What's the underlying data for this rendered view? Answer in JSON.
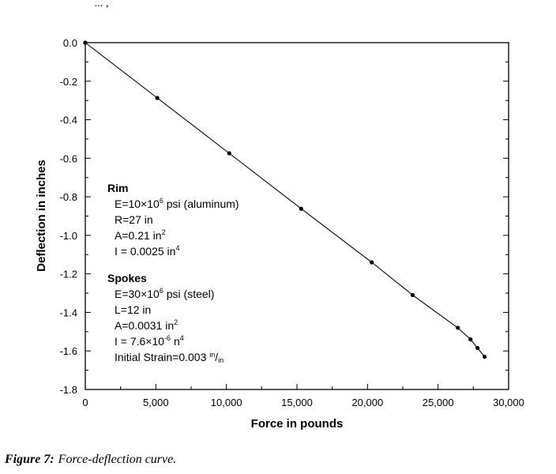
{
  "header_clip": "...  ,      ",
  "caption": {
    "label": "Figure 7:",
    "text": "Force-deflection curve."
  },
  "chart_data": {
    "type": "line",
    "title": "",
    "xlabel": "Force  in pounds",
    "ylabel": "Deflection in inches",
    "xlim": [
      0,
      30000
    ],
    "ylim": [
      -1.8,
      0.0
    ],
    "grid": false,
    "x_ticks": [
      0,
      5000,
      10000,
      15000,
      20000,
      25000,
      30000
    ],
    "x_tick_labels": [
      "0",
      "5,000",
      "10,000",
      "15,000",
      "20,000",
      "25,000",
      "30,000"
    ],
    "y_ticks": [
      0.0,
      -0.2,
      -0.4,
      -0.6,
      -0.8,
      -1.0,
      -1.2,
      -1.4,
      -1.6,
      -1.8
    ],
    "y_tick_labels": [
      "0.0",
      "-0.2",
      "-0.4",
      "-0.6",
      "-0.8",
      "-1.0",
      "-1.2",
      "-1.4",
      "-1.6",
      "-1.8"
    ],
    "series": [
      {
        "x": [
          0,
          5100,
          10200,
          15300,
          20300,
          23200,
          26400,
          27300,
          27800,
          28300
        ],
        "y": [
          0.0,
          -0.287,
          -0.574,
          -0.862,
          -1.14,
          -1.31,
          -1.48,
          -1.54,
          -1.585,
          -1.63
        ]
      }
    ],
    "annotations": {
      "rim": {
        "heading": "Rim",
        "lines": [
          {
            "pre": "E=10×10",
            "sup": "6",
            "post": " psi (aluminum)"
          },
          {
            "pre": "R=27 in",
            "sup": "",
            "post": ""
          },
          {
            "pre": "A=0.21 in",
            "sup": "2",
            "post": ""
          },
          {
            "pre": "I = 0.0025 in",
            "sup": "4",
            "post": ""
          }
        ]
      },
      "spokes": {
        "heading": "Spokes",
        "lines": [
          {
            "pre": "E=30×10",
            "sup": "6",
            "post": " psi (steel)"
          },
          {
            "pre": "L=12 in",
            "sup": "",
            "post": ""
          },
          {
            "pre": "A=0.0031 in",
            "sup": "2",
            "post": ""
          },
          {
            "pre": "I = 7.6×10",
            "sup": "-6",
            "post": " n",
            "sup2": "4"
          },
          {
            "pre": "Initial Strain=0.003 ",
            "sup": "in",
            "post": "/",
            "sub": "in"
          }
        ]
      }
    }
  }
}
